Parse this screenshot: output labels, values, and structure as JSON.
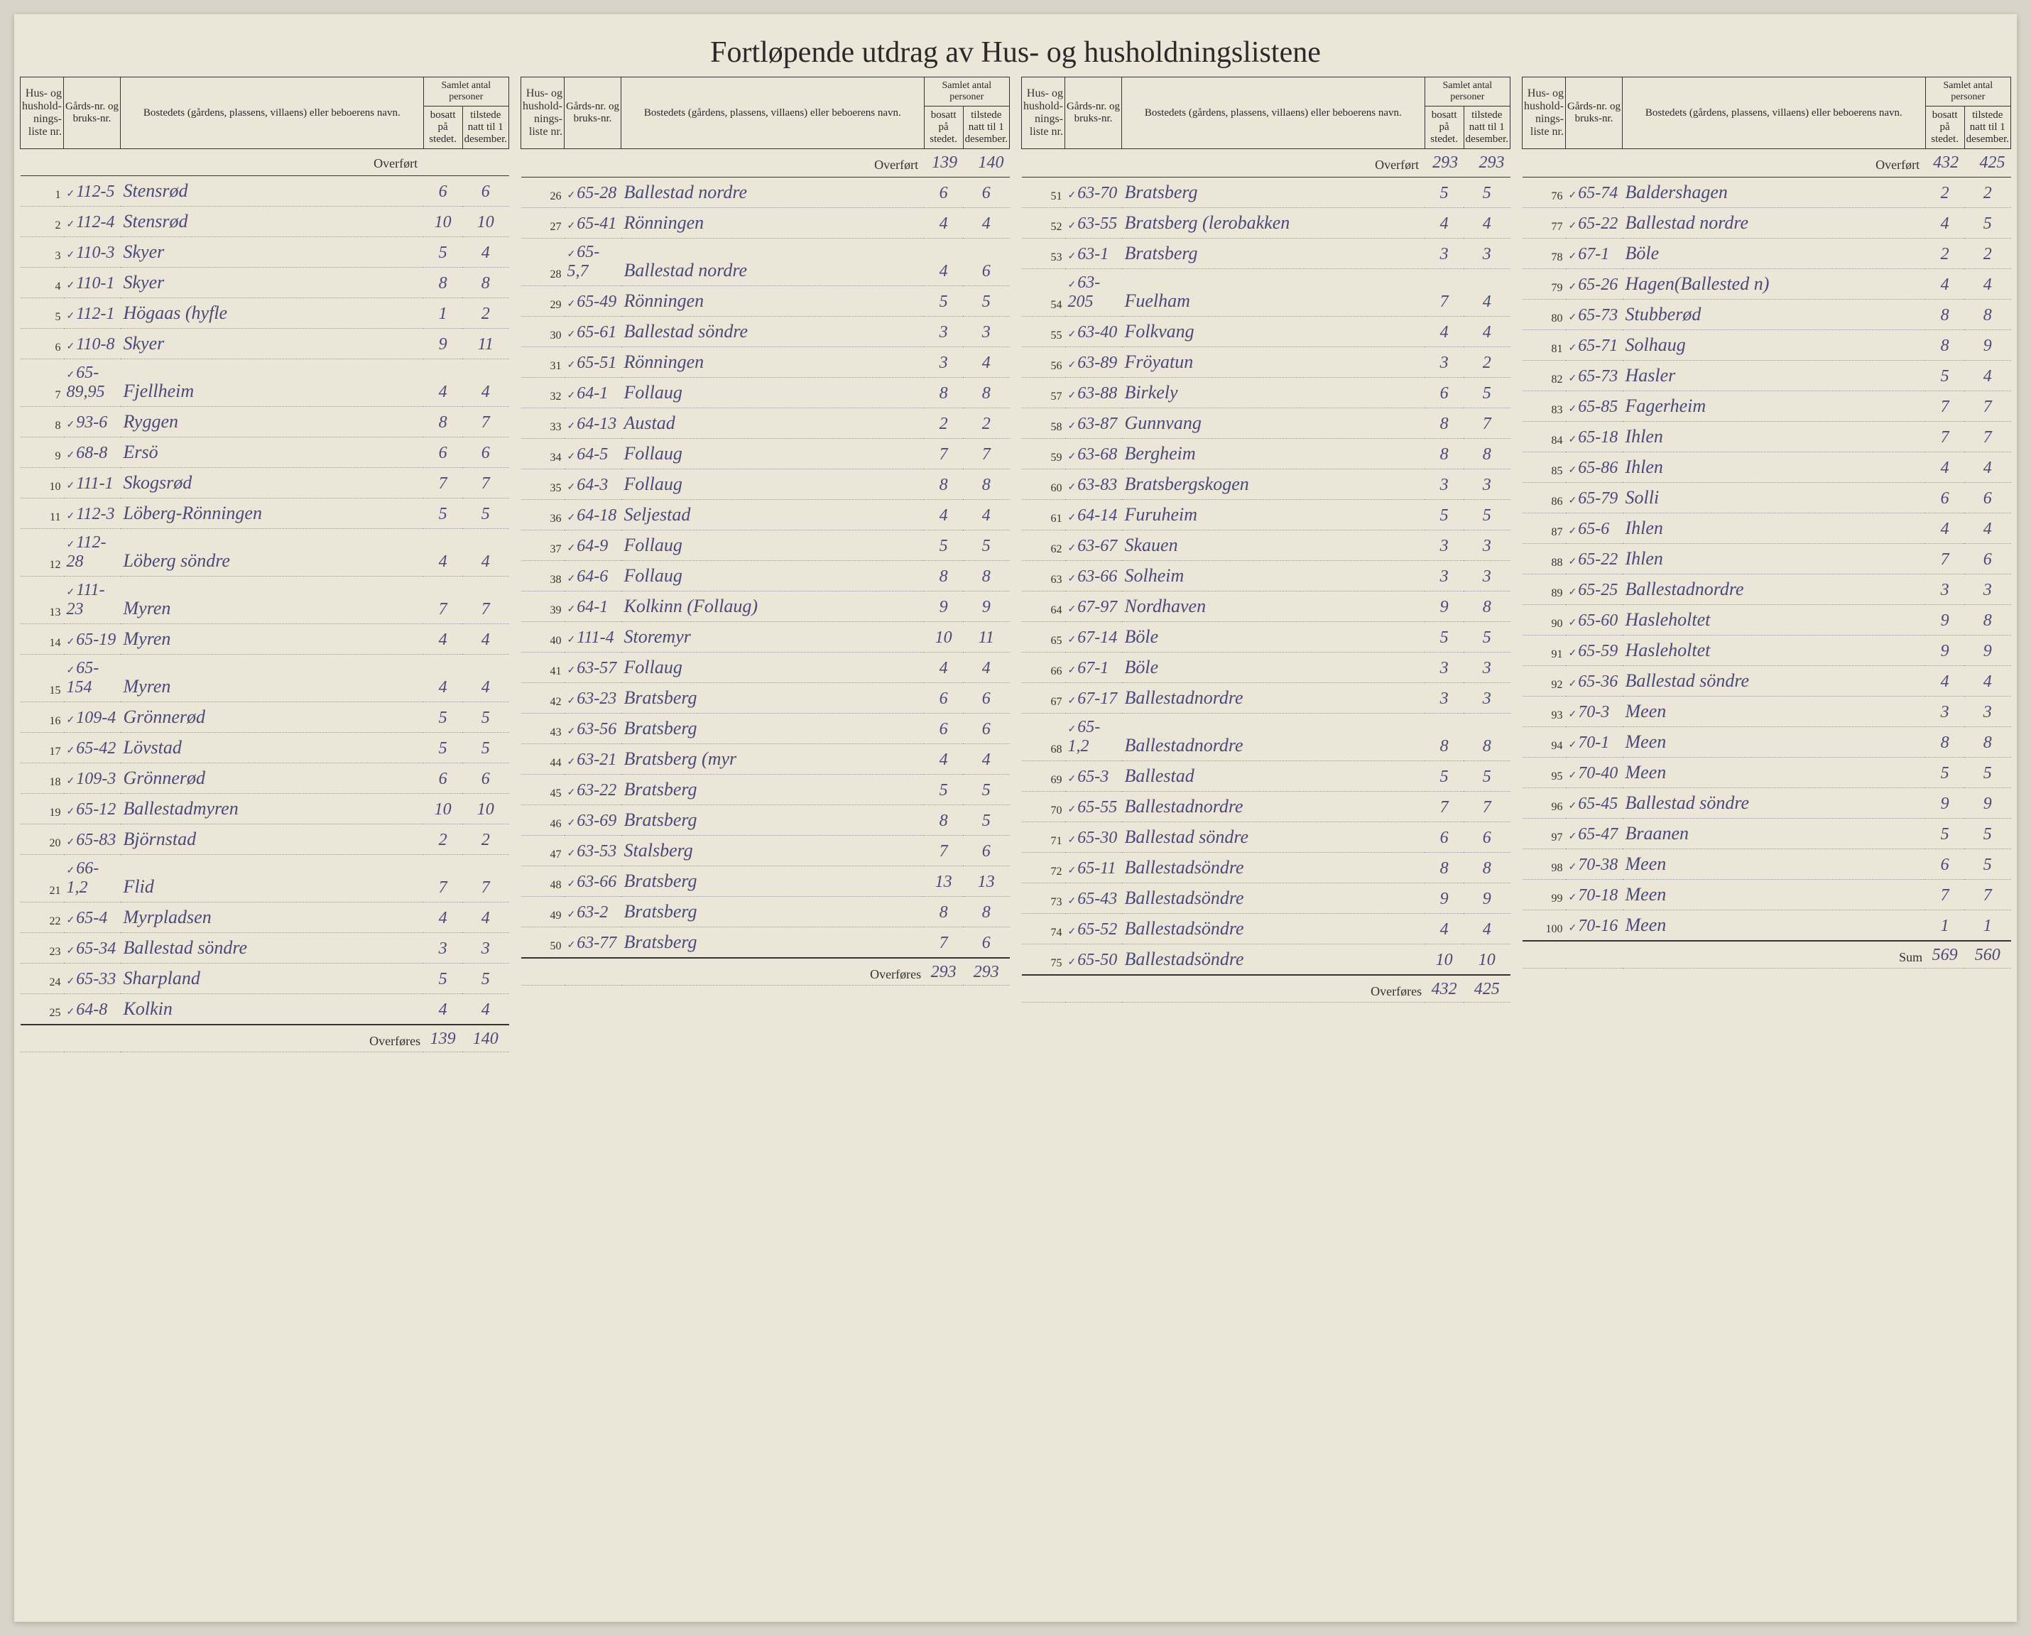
{
  "title": "Fortløpende utdrag    av Hus- og husholdningslistene",
  "header": {
    "col1": "Hus- og hushold-nings-liste nr.",
    "col2": "Gårds-nr. og bruks-nr.",
    "col3": "Bostedets (gårdens, plassens, villaens) eller beboerens navn.",
    "group": "Samlet antal personer",
    "col4": "bosatt på stedet.",
    "col5": "tilstede natt til 1 desember."
  },
  "overfort_label": "Overført",
  "overfores_label": "Overføres",
  "sum_label": "Sum",
  "sections": [
    {
      "overfort": {
        "bosatt": "",
        "tilstede": ""
      },
      "rows": [
        {
          "n": "1",
          "g": "112-5",
          "name": "Stensrød",
          "b": "6",
          "t": "6"
        },
        {
          "n": "2",
          "g": "112-4",
          "name": "Stensrød",
          "b": "10",
          "t": "10"
        },
        {
          "n": "3",
          "g": "110-3",
          "name": "Skyer",
          "b": "5",
          "t": "4"
        },
        {
          "n": "4",
          "g": "110-1",
          "name": "Skyer",
          "b": "8",
          "t": "8"
        },
        {
          "n": "5",
          "g": "112-1",
          "name": "Högaas (hyfle",
          "b": "1",
          "t": "2"
        },
        {
          "n": "6",
          "g": "110-8",
          "name": "Skyer",
          "b": "9",
          "t": "11"
        },
        {
          "n": "7",
          "g": "65-89,95",
          "name": "Fjellheim",
          "b": "4",
          "t": "4"
        },
        {
          "n": "8",
          "g": "93-6",
          "name": "Ryggen",
          "b": "8",
          "t": "7"
        },
        {
          "n": "9",
          "g": "68-8",
          "name": "Ersö",
          "b": "6",
          "t": "6"
        },
        {
          "n": "10",
          "g": "111-1",
          "name": "Skogsrød",
          "b": "7",
          "t": "7"
        },
        {
          "n": "11",
          "g": "112-3",
          "name": "Löberg-Rönningen",
          "b": "5",
          "t": "5"
        },
        {
          "n": "12",
          "g": "112-28",
          "name": "Löberg söndre",
          "b": "4",
          "t": "4"
        },
        {
          "n": "13",
          "g": "111-23",
          "name": "Myren",
          "b": "7",
          "t": "7"
        },
        {
          "n": "14",
          "g": "65-19",
          "name": "Myren",
          "b": "4",
          "t": "4"
        },
        {
          "n": "15",
          "g": "65-154",
          "name": "Myren",
          "b": "4",
          "t": "4"
        },
        {
          "n": "16",
          "g": "109-4",
          "name": "Grönnerød",
          "b": "5",
          "t": "5"
        },
        {
          "n": "17",
          "g": "65-42",
          "name": "Lövstad",
          "b": "5",
          "t": "5"
        },
        {
          "n": "18",
          "g": "109-3",
          "name": "Grönnerød",
          "b": "6",
          "t": "6"
        },
        {
          "n": "19",
          "g": "65-12",
          "name": "Ballestadmyren",
          "b": "10",
          "t": "10"
        },
        {
          "n": "20",
          "g": "65-83",
          "name": "Björnstad",
          "b": "2",
          "t": "2"
        },
        {
          "n": "21",
          "g": "66-1,2",
          "name": "Flid",
          "b": "7",
          "t": "7"
        },
        {
          "n": "22",
          "g": "65-4",
          "name": "Myrpladsen",
          "b": "4",
          "t": "4"
        },
        {
          "n": "23",
          "g": "65-34",
          "name": "Ballestad söndre",
          "b": "3",
          "t": "3"
        },
        {
          "n": "24",
          "g": "65-33",
          "name": "Sharpland",
          "b": "5",
          "t": "5"
        },
        {
          "n": "25",
          "g": "64-8",
          "name": "Kolkin",
          "b": "4",
          "t": "4"
        }
      ],
      "overfores": {
        "bosatt": "139",
        "tilstede": "140"
      }
    },
    {
      "overfort": {
        "bosatt": "139",
        "tilstede": "140"
      },
      "rows": [
        {
          "n": "26",
          "g": "65-28",
          "name": "Ballestad nordre",
          "b": "6",
          "t": "6"
        },
        {
          "n": "27",
          "g": "65-41",
          "name": "Rönningen",
          "b": "4",
          "t": "4"
        },
        {
          "n": "28",
          "g": "65-5,7",
          "name": "Ballestad nordre",
          "b": "4",
          "t": "6"
        },
        {
          "n": "29",
          "g": "65-49",
          "name": "Rönningen",
          "b": "5",
          "t": "5"
        },
        {
          "n": "30",
          "g": "65-61",
          "name": "Ballestad söndre",
          "b": "3",
          "t": "3"
        },
        {
          "n": "31",
          "g": "65-51",
          "name": "Rönningen",
          "b": "3",
          "t": "4"
        },
        {
          "n": "32",
          "g": "64-1",
          "name": "Follaug",
          "b": "8",
          "t": "8"
        },
        {
          "n": "33",
          "g": "64-13",
          "name": "Austad",
          "b": "2",
          "t": "2"
        },
        {
          "n": "34",
          "g": "64-5",
          "name": "Follaug",
          "b": "7",
          "t": "7"
        },
        {
          "n": "35",
          "g": "64-3",
          "name": "Follaug",
          "b": "8",
          "t": "8"
        },
        {
          "n": "36",
          "g": "64-18",
          "name": "Seljestad",
          "b": "4",
          "t": "4"
        },
        {
          "n": "37",
          "g": "64-9",
          "name": "Follaug",
          "b": "5",
          "t": "5"
        },
        {
          "n": "38",
          "g": "64-6",
          "name": "Follaug",
          "b": "8",
          "t": "8"
        },
        {
          "n": "39",
          "g": "64-1",
          "name": "Kolkinn (Follaug)",
          "b": "9",
          "t": "9"
        },
        {
          "n": "40",
          "g": "111-4",
          "name": "Storemyr",
          "b": "10",
          "t": "11"
        },
        {
          "n": "41",
          "g": "63-57",
          "name": "Follaug",
          "b": "4",
          "t": "4"
        },
        {
          "n": "42",
          "g": "63-23",
          "name": "Bratsberg",
          "b": "6",
          "t": "6"
        },
        {
          "n": "43",
          "g": "63-56",
          "name": "Bratsberg",
          "b": "6",
          "t": "6"
        },
        {
          "n": "44",
          "g": "63-21",
          "name": "Bratsberg (myr",
          "b": "4",
          "t": "4"
        },
        {
          "n": "45",
          "g": "63-22",
          "name": "Bratsberg",
          "b": "5",
          "t": "5"
        },
        {
          "n": "46",
          "g": "63-69",
          "name": "Bratsberg",
          "b": "8",
          "t": "5"
        },
        {
          "n": "47",
          "g": "63-53",
          "name": "Stalsberg",
          "b": "7",
          "t": "6"
        },
        {
          "n": "48",
          "g": "63-66",
          "name": "Bratsberg",
          "b": "13",
          "t": "13"
        },
        {
          "n": "49",
          "g": "63-2",
          "name": "Bratsberg",
          "b": "8",
          "t": "8"
        },
        {
          "n": "50",
          "g": "63-77",
          "name": "Bratsberg",
          "b": "7",
          "t": "6"
        }
      ],
      "overfores": {
        "bosatt": "293",
        "tilstede": "293"
      }
    },
    {
      "overfort": {
        "bosatt": "293",
        "tilstede": "293"
      },
      "rows": [
        {
          "n": "51",
          "g": "63-70",
          "name": "Bratsberg",
          "b": "5",
          "t": "5"
        },
        {
          "n": "52",
          "g": "63-55",
          "name": "Bratsberg (lerobakken",
          "b": "4",
          "t": "4"
        },
        {
          "n": "53",
          "g": "63-1",
          "name": "Bratsberg",
          "b": "3",
          "t": "3"
        },
        {
          "n": "54",
          "g": "63-205",
          "name": "Fuelham",
          "b": "7",
          "t": "4"
        },
        {
          "n": "55",
          "g": "63-40",
          "name": "Folkvang",
          "b": "4",
          "t": "4"
        },
        {
          "n": "56",
          "g": "63-89",
          "name": "Fröyatun",
          "b": "3",
          "t": "2"
        },
        {
          "n": "57",
          "g": "63-88",
          "name": "Birkely",
          "b": "6",
          "t": "5"
        },
        {
          "n": "58",
          "g": "63-87",
          "name": "Gunnvang",
          "b": "8",
          "t": "7"
        },
        {
          "n": "59",
          "g": "63-68",
          "name": "Bergheim",
          "b": "8",
          "t": "8"
        },
        {
          "n": "60",
          "g": "63-83",
          "name": "Bratsbergskogen",
          "b": "3",
          "t": "3"
        },
        {
          "n": "61",
          "g": "64-14",
          "name": "Furuheim",
          "b": "5",
          "t": "5"
        },
        {
          "n": "62",
          "g": "63-67",
          "name": "Skauen",
          "b": "3",
          "t": "3"
        },
        {
          "n": "63",
          "g": "63-66",
          "name": "Solheim",
          "b": "3",
          "t": "3"
        },
        {
          "n": "64",
          "g": "67-97",
          "name": "Nordhaven",
          "b": "9",
          "t": "8"
        },
        {
          "n": "65",
          "g": "67-14",
          "name": "Böle",
          "b": "5",
          "t": "5"
        },
        {
          "n": "66",
          "g": "67-1",
          "name": "Böle",
          "b": "3",
          "t": "3"
        },
        {
          "n": "67",
          "g": "67-17",
          "name": "Ballestadnordre",
          "b": "3",
          "t": "3"
        },
        {
          "n": "68",
          "g": "65-1,2",
          "name": "Ballestadnordre",
          "b": "8",
          "t": "8"
        },
        {
          "n": "69",
          "g": "65-3",
          "name": "Ballestad",
          "b": "5",
          "t": "5"
        },
        {
          "n": "70",
          "g": "65-55",
          "name": "Ballestadnordre",
          "b": "7",
          "t": "7"
        },
        {
          "n": "71",
          "g": "65-30",
          "name": "Ballestad söndre",
          "b": "6",
          "t": "6"
        },
        {
          "n": "72",
          "g": "65-11",
          "name": "Ballestadsöndre",
          "b": "8",
          "t": "8"
        },
        {
          "n": "73",
          "g": "65-43",
          "name": "Ballestadsöndre",
          "b": "9",
          "t": "9"
        },
        {
          "n": "74",
          "g": "65-52",
          "name": "Ballestadsöndre",
          "b": "4",
          "t": "4"
        },
        {
          "n": "75",
          "g": "65-50",
          "name": "Ballestadsöndre",
          "b": "10",
          "t": "10"
        }
      ],
      "overfores": {
        "bosatt": "432",
        "tilstede": "425"
      }
    },
    {
      "overfort": {
        "bosatt": "432",
        "tilstede": "425"
      },
      "rows": [
        {
          "n": "76",
          "g": "65-74",
          "name": "Baldershagen",
          "b": "2",
          "t": "2"
        },
        {
          "n": "77",
          "g": "65-22",
          "name": "Ballestad nordre",
          "b": "4",
          "t": "5"
        },
        {
          "n": "78",
          "g": "67-1",
          "name": "Böle",
          "b": "2",
          "t": "2"
        },
        {
          "n": "79",
          "g": "65-26",
          "name": "Hagen(Ballested n)",
          "b": "4",
          "t": "4"
        },
        {
          "n": "80",
          "g": "65-73",
          "name": "Stubberød",
          "b": "8",
          "t": "8"
        },
        {
          "n": "81",
          "g": "65-71",
          "name": "Solhaug",
          "b": "8",
          "t": "9"
        },
        {
          "n": "82",
          "g": "65-73",
          "name": "Hasler",
          "b": "5",
          "t": "4"
        },
        {
          "n": "83",
          "g": "65-85",
          "name": "Fagerheim",
          "b": "7",
          "t": "7"
        },
        {
          "n": "84",
          "g": "65-18",
          "name": "Ihlen",
          "b": "7",
          "t": "7"
        },
        {
          "n": "85",
          "g": "65-86",
          "name": "Ihlen",
          "b": "4",
          "t": "4"
        },
        {
          "n": "86",
          "g": "65-79",
          "name": "Solli",
          "b": "6",
          "t": "6"
        },
        {
          "n": "87",
          "g": "65-6",
          "name": "Ihlen",
          "b": "4",
          "t": "4"
        },
        {
          "n": "88",
          "g": "65-22",
          "name": "Ihlen",
          "b": "7",
          "t": "6"
        },
        {
          "n": "89",
          "g": "65-25",
          "name": "Ballestadnordre",
          "b": "3",
          "t": "3"
        },
        {
          "n": "90",
          "g": "65-60",
          "name": "Hasleholtet",
          "b": "9",
          "t": "8"
        },
        {
          "n": "91",
          "g": "65-59",
          "name": "Hasleholtet",
          "b": "9",
          "t": "9"
        },
        {
          "n": "92",
          "g": "65-36",
          "name": "Ballestad söndre",
          "b": "4",
          "t": "4"
        },
        {
          "n": "93",
          "g": "70-3",
          "name": "Meen",
          "b": "3",
          "t": "3"
        },
        {
          "n": "94",
          "g": "70-1",
          "name": "Meen",
          "b": "8",
          "t": "8"
        },
        {
          "n": "95",
          "g": "70-40",
          "name": "Meen",
          "b": "5",
          "t": "5"
        },
        {
          "n": "96",
          "g": "65-45",
          "name": "Ballestad söndre",
          "b": "9",
          "t": "9"
        },
        {
          "n": "97",
          "g": "65-47",
          "name": "Braanen",
          "b": "5",
          "t": "5"
        },
        {
          "n": "98",
          "g": "70-38",
          "name": "Meen",
          "b": "6",
          "t": "5"
        },
        {
          "n": "99",
          "g": "70-18",
          "name": "Meen",
          "b": "7",
          "t": "7"
        },
        {
          "n": "100",
          "g": "70-16",
          "name": "Meen",
          "b": "1",
          "t": "1"
        }
      ],
      "overfores": {
        "bosatt": "569",
        "tilstede": "560"
      },
      "is_sum": true
    }
  ]
}
